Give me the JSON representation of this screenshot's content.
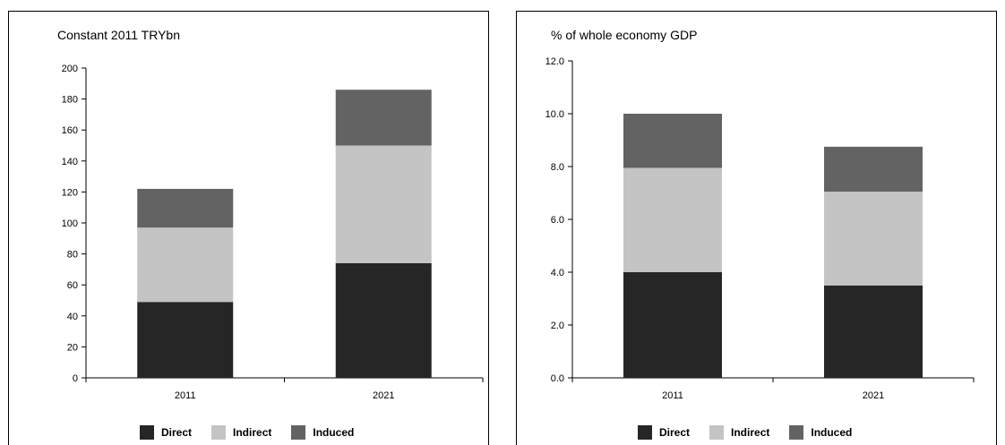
{
  "colors": {
    "Direct": "#262626",
    "Indirect": "#c4c4c4",
    "Induced": "#636363"
  },
  "chart_data": [
    {
      "type": "bar",
      "stacked": true,
      "title": "Constant 2011 TRYbn",
      "categories": [
        "2011",
        "2021"
      ],
      "series": [
        {
          "name": "Direct",
          "values": [
            49,
            74
          ]
        },
        {
          "name": "Indirect",
          "values": [
            48,
            76
          ]
        },
        {
          "name": "Induced",
          "values": [
            25,
            36
          ]
        }
      ],
      "ylim": [
        0,
        200
      ],
      "yticks": [
        0,
        20,
        40,
        60,
        80,
        100,
        120,
        140,
        160,
        180,
        200
      ],
      "ytick_labels": [
        "0",
        "20",
        "40",
        "60",
        "80",
        "100",
        "120",
        "140",
        "160",
        "180",
        "200"
      ],
      "grid": false,
      "legend": "bottom"
    },
    {
      "type": "bar",
      "stacked": true,
      "title": "% of whole economy GDP",
      "categories": [
        "2011",
        "2021"
      ],
      "series": [
        {
          "name": "Direct",
          "values": [
            4.0,
            3.5
          ]
        },
        {
          "name": "Indirect",
          "values": [
            3.95,
            3.55
          ]
        },
        {
          "name": "Induced",
          "values": [
            2.05,
            1.7
          ]
        }
      ],
      "ylim": [
        0,
        12
      ],
      "yticks": [
        0,
        2,
        4,
        6,
        8,
        10,
        12
      ],
      "ytick_labels": [
        "0.0",
        "2.0",
        "4.0",
        "6.0",
        "8.0",
        "10.0",
        "12.0"
      ],
      "grid": false,
      "legend": "bottom"
    }
  ]
}
